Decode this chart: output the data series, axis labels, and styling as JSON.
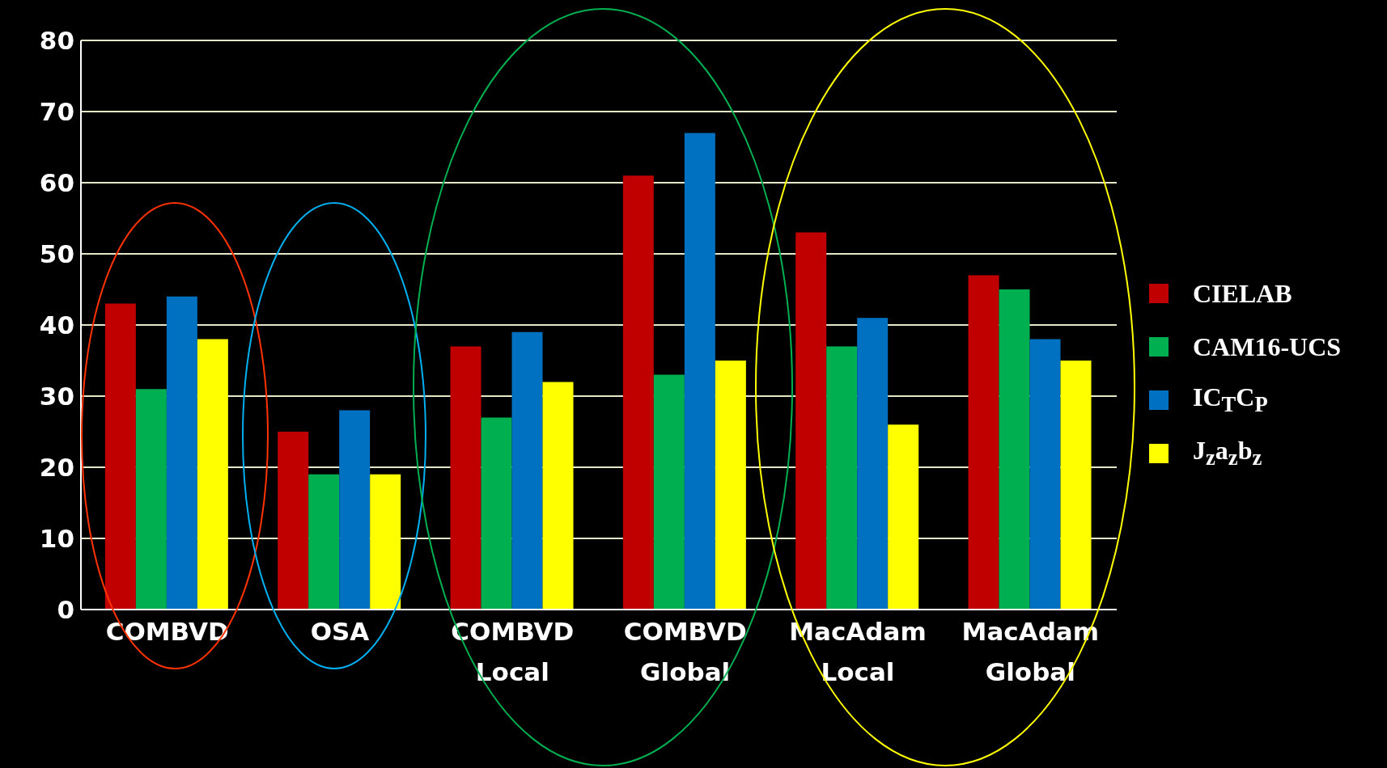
{
  "chart_data": {
    "type": "bar",
    "categories": [
      "COMBVD",
      "OSA",
      "COMBVD Local",
      "COMBVD Global",
      "MacAdam Local",
      "MacAdam Global"
    ],
    "series": [
      {
        "name": "CIELAB",
        "color": "#c00000",
        "values": [
          43,
          25,
          37,
          61,
          53,
          47
        ]
      },
      {
        "name": "CAM16-UCS",
        "color": "#00b050",
        "values": [
          31,
          19,
          27,
          33,
          37,
          45
        ]
      },
      {
        "name": "IC$_{T}$C$_{P}$",
        "color": "#0070c0",
        "values": [
          44,
          28,
          39,
          67,
          41,
          38
        ]
      },
      {
        "name": "J$_{z}$a$_{z}$b$_{z}$",
        "color": "#ffff00",
        "values": [
          38,
          19,
          32,
          35,
          26,
          35
        ]
      }
    ],
    "ylim": [
      0,
      80
    ],
    "yticks": [
      0,
      10,
      20,
      30,
      40,
      50,
      60,
      70,
      80
    ],
    "grid": "y",
    "legend": "right"
  }
}
